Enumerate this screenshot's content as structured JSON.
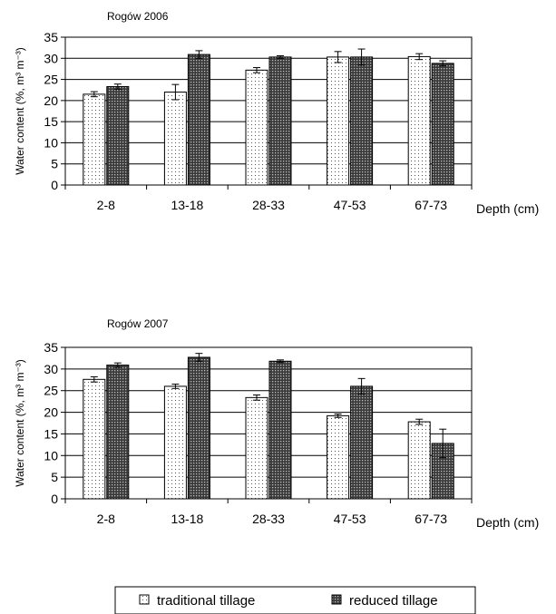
{
  "legend": {
    "traditional": "traditional tillage",
    "reduced": "reduced tillage"
  },
  "chart_data": [
    {
      "type": "bar",
      "title": "Rogów 2006",
      "ylabel": "Water content (%, m³ m⁻³)",
      "xlabel": "Depth (cm)",
      "categories": [
        "2-8",
        "13-18",
        "28-33",
        "47-53",
        "67-73"
      ],
      "ylim": [
        0,
        35
      ],
      "yticks": [
        "0",
        "5",
        "10",
        "15",
        "20",
        "25",
        "30",
        "35"
      ],
      "grid": true,
      "series": [
        {
          "name": "traditional tillage",
          "values": [
            21.5,
            22.0,
            27.2,
            30.3,
            30.4
          ],
          "errors": [
            0.6,
            1.8,
            0.6,
            1.3,
            0.7
          ]
        },
        {
          "name": "reduced tillage",
          "values": [
            23.3,
            30.9,
            30.3,
            30.3,
            28.8
          ],
          "errors": [
            0.6,
            0.9,
            0.3,
            1.9,
            0.6
          ]
        }
      ]
    },
    {
      "type": "bar",
      "title": "Rogów 2007",
      "ylabel": "Water content (%, m³ m⁻³)",
      "xlabel": "Depth (cm)",
      "categories": [
        "2-8",
        "13-18",
        "28-33",
        "47-53",
        "67-73"
      ],
      "ylim": [
        0,
        35
      ],
      "yticks": [
        "0",
        "5",
        "10",
        "15",
        "20",
        "25",
        "30",
        "35"
      ],
      "grid": true,
      "series": [
        {
          "name": "traditional tillage",
          "values": [
            27.6,
            26.0,
            23.4,
            19.2,
            17.8
          ],
          "errors": [
            0.6,
            0.5,
            0.6,
            0.4,
            0.6
          ]
        },
        {
          "name": "reduced tillage",
          "values": [
            30.9,
            32.7,
            31.8,
            26.0,
            12.8
          ],
          "errors": [
            0.5,
            0.9,
            0.3,
            1.8,
            3.3
          ]
        }
      ]
    }
  ]
}
